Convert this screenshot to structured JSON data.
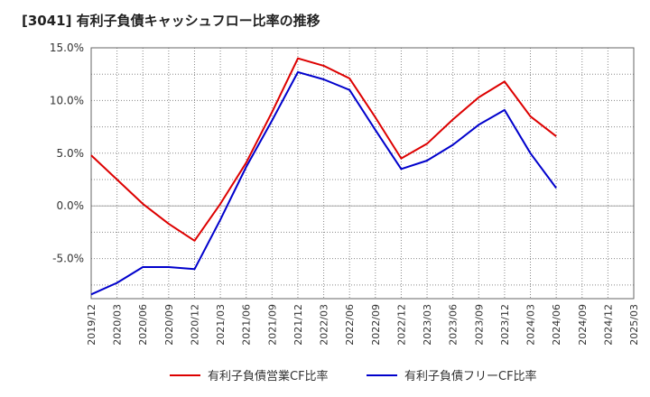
{
  "chart_data": {
    "type": "line",
    "title": "[3041]  有利子負債キャッシュフロー比率の推移",
    "xlabel": "",
    "ylabel": "",
    "ylim": [
      -8.8,
      15.0
    ],
    "y_ticks": [
      15.0,
      10.0,
      5.0,
      0.0,
      -5.0
    ],
    "y_tick_labels": [
      "15.0%",
      "10.0%",
      "5.0%",
      "0.0%",
      "-5.0%"
    ],
    "x": [
      "2019/12",
      "2020/03",
      "2020/06",
      "2020/09",
      "2020/12",
      "2021/03",
      "2021/06",
      "2021/09",
      "2021/12",
      "2022/03",
      "2022/06",
      "2022/09",
      "2022/12",
      "2023/03",
      "2023/06",
      "2023/09",
      "2023/12",
      "2024/03",
      "2024/06",
      "2024/09",
      "2024/12",
      "2025/03"
    ],
    "grid": true,
    "legend_position": "bottom",
    "series": [
      {
        "name": "有利子負債営業CF比率",
        "color": "#dd0000",
        "values": [
          4.8,
          2.5,
          0.2,
          -1.7,
          -3.3,
          0.2,
          4.1,
          8.9,
          14.0,
          13.3,
          12.1,
          8.4,
          4.5,
          5.9,
          8.2,
          10.3,
          11.8,
          8.5,
          6.6,
          null,
          null,
          null
        ]
      },
      {
        "name": "有利子負債フリーCF比率",
        "color": "#0000cc",
        "values": [
          -8.4,
          -7.3,
          -5.8,
          -5.8,
          -6.0,
          -1.3,
          3.7,
          8.1,
          12.7,
          12.0,
          11.0,
          7.2,
          3.5,
          4.3,
          5.8,
          7.7,
          9.1,
          5.0,
          1.7,
          null,
          null,
          null
        ]
      }
    ]
  }
}
